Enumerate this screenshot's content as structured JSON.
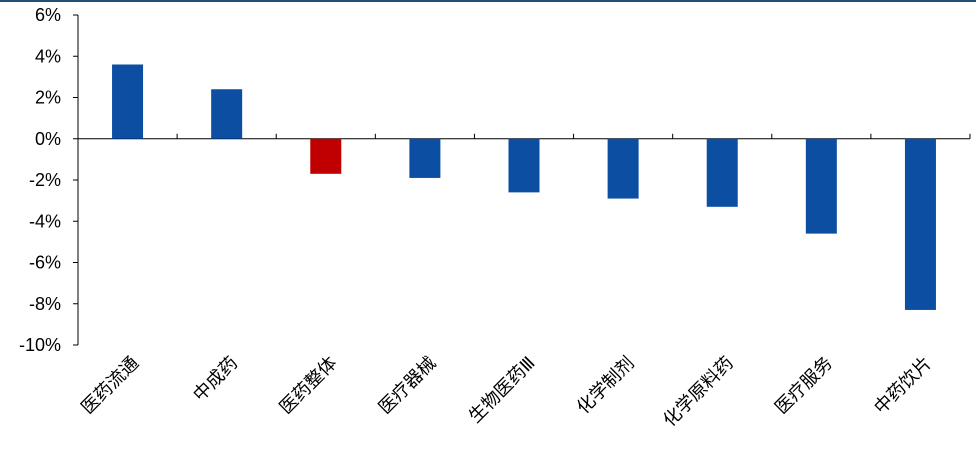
{
  "chart_data": {
    "type": "bar",
    "categories": [
      "医药流通",
      "中成药",
      "医药整体",
      "医疗器械",
      "生物医药Ⅲ",
      "化学制剂",
      "化学原料药",
      "医疗服务",
      "中药饮片"
    ],
    "values": [
      3.6,
      2.4,
      -1.7,
      -1.9,
      -2.6,
      -2.9,
      -3.3,
      -4.6,
      -8.3
    ],
    "unit": "%",
    "ylim": [
      -10,
      6
    ],
    "yticks": [
      6,
      4,
      2,
      0,
      -2,
      -4,
      -6,
      -8,
      -10
    ],
    "ytick_labels": [
      "6%",
      "4%",
      "2%",
      "0%",
      "-2%",
      "-4%",
      "-6%",
      "-8%",
      "-10%"
    ],
    "highlight_category": "医药整体",
    "colors": {
      "default": "#0b4ea2",
      "highlight": "#c00000",
      "axis": "#000000",
      "top_rule": "#1f4e79"
    },
    "grid": false,
    "legend": "none",
    "title": "",
    "xlabel": "",
    "ylabel": ""
  }
}
